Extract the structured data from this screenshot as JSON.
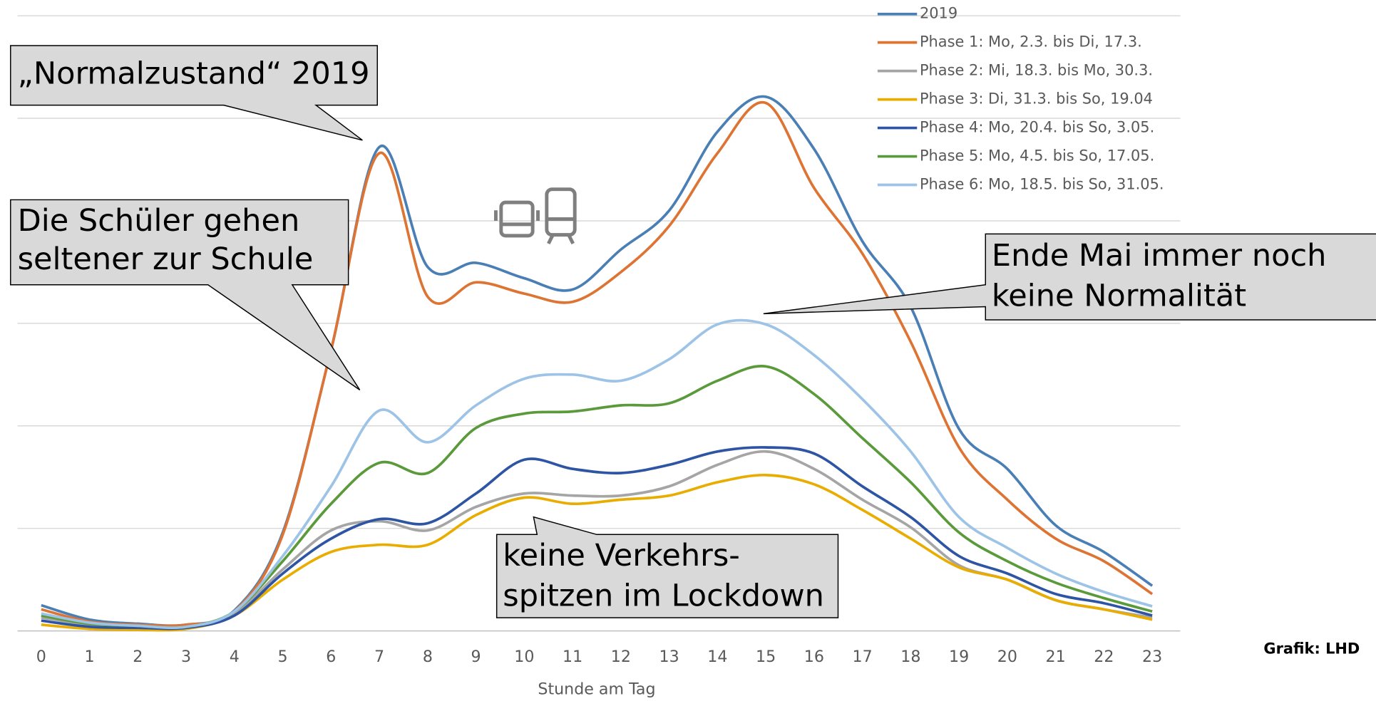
{
  "chart_data": {
    "type": "line",
    "x": [
      0,
      1,
      2,
      3,
      4,
      5,
      6,
      7,
      8,
      9,
      10,
      11,
      12,
      13,
      14,
      15,
      16,
      17,
      18,
      19,
      20,
      21,
      22,
      23
    ],
    "xlim": [
      0,
      23
    ],
    "ylim": [
      0,
      6
    ],
    "yticks": [
      0,
      1,
      2,
      3,
      4,
      5,
      6
    ],
    "grid": true,
    "x_label": "Stunde am Tag",
    "legend": "top-right",
    "series": [
      {
        "name": "2019",
        "color": "#4a7fb5",
        "values": [
          0.25,
          0.11,
          0.07,
          0.06,
          0.2,
          0.96,
          2.74,
          4.72,
          3.55,
          3.59,
          3.44,
          3.33,
          3.72,
          4.1,
          4.87,
          5.21,
          4.7,
          3.8,
          3.16,
          1.97,
          1.58,
          1.03,
          0.77,
          0.44
        ]
      },
      {
        "name": "Phase 1: Mo, 2.3. bis Di, 17.3.",
        "color": "#dd7433",
        "values": [
          0.21,
          0.09,
          0.06,
          0.06,
          0.19,
          0.94,
          2.74,
          4.66,
          3.26,
          3.4,
          3.29,
          3.21,
          3.5,
          3.95,
          4.66,
          5.15,
          4.32,
          3.68,
          2.82,
          1.79,
          1.28,
          0.9,
          0.68,
          0.36
        ]
      },
      {
        "name": "Phase 2: Mi, 18.3. bis Mo, 30.3.",
        "color": "#a5a5a5",
        "values": [
          0.13,
          0.06,
          0.03,
          0.03,
          0.17,
          0.6,
          0.98,
          1.07,
          0.98,
          1.21,
          1.34,
          1.32,
          1.32,
          1.41,
          1.62,
          1.75,
          1.58,
          1.28,
          1.01,
          0.64,
          0.5,
          0.3,
          0.21,
          0.13
        ]
      },
      {
        "name": "Phase 3: Di, 31.3. bis So, 19.04",
        "color": "#e8ad00",
        "values": [
          0.06,
          0.02,
          0.01,
          0.02,
          0.15,
          0.5,
          0.77,
          0.84,
          0.84,
          1.13,
          1.3,
          1.24,
          1.28,
          1.32,
          1.45,
          1.52,
          1.43,
          1.18,
          0.9,
          0.62,
          0.5,
          0.3,
          0.21,
          0.11
        ]
      },
      {
        "name": "Phase 4: Mo, 20.4. bis So, 3.05.",
        "color": "#2e54a4",
        "values": [
          0.1,
          0.04,
          0.03,
          0.03,
          0.15,
          0.56,
          0.9,
          1.09,
          1.05,
          1.34,
          1.67,
          1.58,
          1.54,
          1.62,
          1.75,
          1.79,
          1.73,
          1.41,
          1.11,
          0.73,
          0.56,
          0.36,
          0.27,
          0.15
        ]
      },
      {
        "name": "Phase 5: Mo, 4.5. bis So, 17.05.",
        "color": "#5a9a3a",
        "values": [
          0.15,
          0.07,
          0.05,
          0.04,
          0.19,
          0.68,
          1.24,
          1.64,
          1.54,
          1.98,
          2.12,
          2.14,
          2.2,
          2.22,
          2.44,
          2.58,
          2.31,
          1.88,
          1.45,
          0.96,
          0.68,
          0.47,
          0.32,
          0.19
        ]
      },
      {
        "name": "Phase 6: Mo, 18.5. bis So, 31.05.",
        "color": "#9dc3e6",
        "values": [
          0.17,
          0.08,
          0.05,
          0.04,
          0.19,
          0.73,
          1.41,
          2.15,
          1.84,
          2.2,
          2.46,
          2.5,
          2.44,
          2.65,
          2.99,
          2.99,
          2.69,
          2.26,
          1.75,
          1.11,
          0.81,
          0.56,
          0.38,
          0.24
        ]
      }
    ],
    "annotations": [
      {
        "lines": [
          "„Normalzustand“ 2019"
        ]
      },
      {
        "lines": [
          "Die Schüler gehen",
          "seltener zur Schule"
        ]
      },
      {
        "lines": [
          "Ende Mai immer noch",
          "keine Normalität"
        ]
      },
      {
        "lines": [
          "keine Verkehrs-",
          "spitzen im Lockdown"
        ]
      }
    ],
    "source": "Grafik: LHD"
  }
}
